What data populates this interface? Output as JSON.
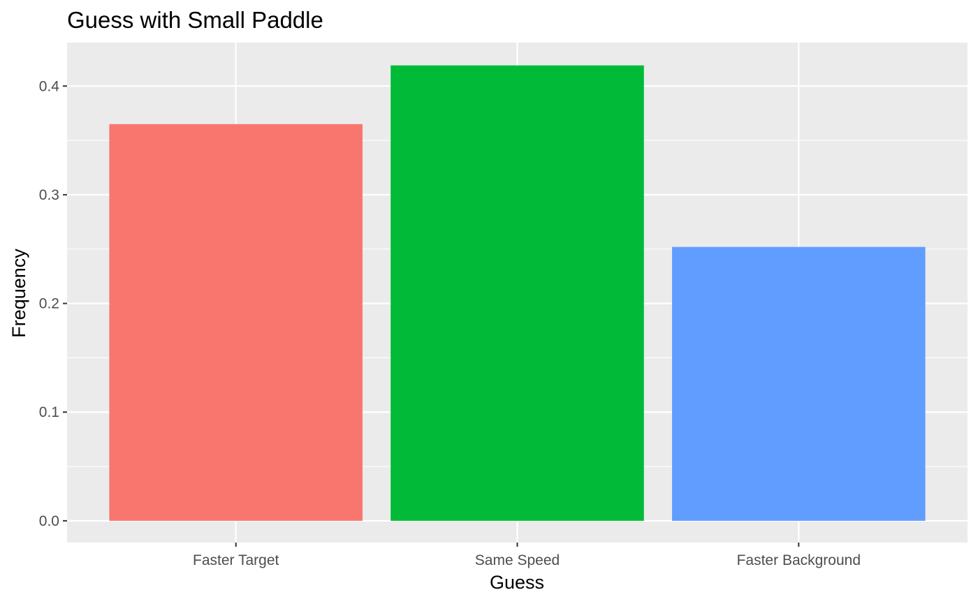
{
  "chart_data": {
    "type": "bar",
    "title": "Guess with Small Paddle",
    "xlabel": "Guess",
    "ylabel": "Frequency",
    "categories": [
      "Faster Target",
      "Same Speed",
      "Faster Background"
    ],
    "values": [
      0.365,
      0.419,
      0.252
    ],
    "colors": [
      "#F8766D",
      "#00BA38",
      "#619CFF"
    ],
    "ylim": [
      -0.02,
      0.44
    ],
    "yticks": [
      0.0,
      0.1,
      0.2,
      0.3,
      0.4
    ],
    "ytick_labels": [
      "0.0",
      "0.1",
      "0.2",
      "0.3",
      "0.4"
    ],
    "panel_background": "#EBEBEB",
    "grid": true,
    "legend": "none"
  }
}
